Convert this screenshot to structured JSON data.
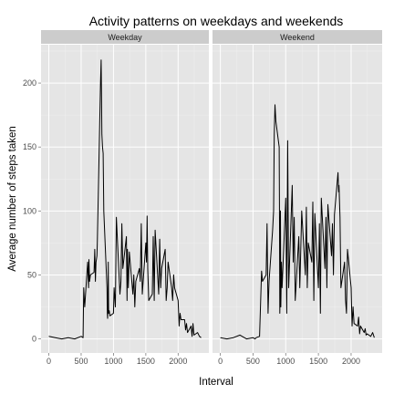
{
  "chart_data": {
    "type": "line",
    "title": "Activity patterns on weekdays and weekends",
    "xlabel": "Interval",
    "ylabel": "Average number of steps taken",
    "xlim": [
      -120,
      2475
    ],
    "ylim": [
      -11,
      230
    ],
    "x_ticks": [
      0,
      500,
      1000,
      1500,
      2000
    ],
    "x_tick_labels": [
      "0",
      "500",
      "1000",
      "1500",
      "2000"
    ],
    "y_ticks": [
      0,
      50,
      100,
      150,
      200
    ],
    "y_tick_labels": [
      "0",
      "50",
      "100",
      "150",
      "200"
    ],
    "grid": true,
    "colors": {
      "panel_background": "#e5e5e5",
      "grid_major": "#ffffff",
      "grid_minor": "#f0f0f0",
      "strip_background": "#cccccc",
      "line": "#000000"
    },
    "panels": [
      {
        "name": "Weekday",
        "x": [
          0,
          100,
          200,
          300,
          400,
          500,
          530,
          540,
          550,
          555,
          600,
          615,
          620,
          630,
          645,
          700,
          710,
          720,
          730,
          745,
          750,
          800,
          810,
          815,
          820,
          830,
          840,
          850,
          900,
          905,
          910,
          915,
          920,
          925,
          935,
          945,
          1000,
          1010,
          1030,
          1045,
          1100,
          1115,
          1130,
          1145,
          1200,
          1210,
          1215,
          1220,
          1230,
          1245,
          1300,
          1315,
          1330,
          1345,
          1400,
          1415,
          1430,
          1445,
          1500,
          1510,
          1520,
          1530,
          1545,
          1600,
          1615,
          1630,
          1645,
          1700,
          1715,
          1730,
          1745,
          1800,
          1815,
          1830,
          1845,
          1900,
          1915,
          1930,
          1945,
          2000,
          2015,
          2030,
          2045,
          2100,
          2115,
          2130,
          2145,
          2200,
          2215,
          2230,
          2245,
          2300,
          2330,
          2355
        ],
        "y": [
          2,
          1,
          0,
          1,
          0,
          2,
          1,
          40,
          30,
          25,
          60,
          40,
          62,
          45,
          50,
          52,
          70,
          45,
          60,
          65,
          75,
          200,
          218,
          190,
          160,
          150,
          145,
          100,
          40,
          20,
          16,
          25,
          60,
          20,
          22,
          18,
          20,
          40,
          25,
          95,
          35,
          45,
          90,
          55,
          80,
          30,
          70,
          60,
          40,
          68,
          35,
          50,
          25,
          45,
          55,
          45,
          90,
          35,
          75,
          60,
          96,
          55,
          30,
          35,
          80,
          30,
          85,
          35,
          78,
          40,
          55,
          70,
          30,
          40,
          60,
          40,
          30,
          50,
          40,
          30,
          10,
          20,
          15,
          15,
          7,
          12,
          5,
          10,
          2,
          12,
          3,
          5,
          2,
          1
        ]
      },
      {
        "name": "Weekend",
        "x": [
          0,
          100,
          200,
          300,
          400,
          500,
          530,
          550,
          600,
          630,
          645,
          700,
          715,
          730,
          745,
          800,
          815,
          825,
          835,
          850,
          900,
          905,
          910,
          915,
          920,
          925,
          935,
          945,
          1000,
          1015,
          1030,
          1045,
          1100,
          1115,
          1130,
          1145,
          1200,
          1215,
          1230,
          1245,
          1300,
          1315,
          1330,
          1345,
          1400,
          1415,
          1430,
          1445,
          1500,
          1515,
          1530,
          1545,
          1600,
          1615,
          1630,
          1645,
          1700,
          1715,
          1730,
          1745,
          1800,
          1810,
          1815,
          1830,
          1845,
          1900,
          1915,
          1930,
          1945,
          2000,
          2015,
          2030,
          2045,
          2100,
          2115,
          2130,
          2145,
          2200,
          2215,
          2230,
          2245,
          2300,
          2330,
          2355
        ],
        "y": [
          1,
          0,
          1,
          3,
          0,
          1,
          0,
          1,
          2,
          53,
          45,
          50,
          90,
          20,
          45,
          85,
          100,
          160,
          183,
          170,
          150,
          90,
          20,
          40,
          100,
          25,
          60,
          40,
          110,
          20,
          155,
          40,
          120,
          60,
          95,
          30,
          80,
          40,
          70,
          100,
          50,
          103,
          40,
          75,
          60,
          107,
          30,
          98,
          40,
          90,
          20,
          110,
          55,
          95,
          40,
          105,
          65,
          90,
          50,
          97,
          130,
          115,
          120,
          95,
          40,
          60,
          30,
          20,
          70,
          40,
          10,
          25,
          12,
          10,
          17,
          4,
          10,
          5,
          8,
          3,
          4,
          2,
          5,
          1
        ]
      }
    ]
  }
}
